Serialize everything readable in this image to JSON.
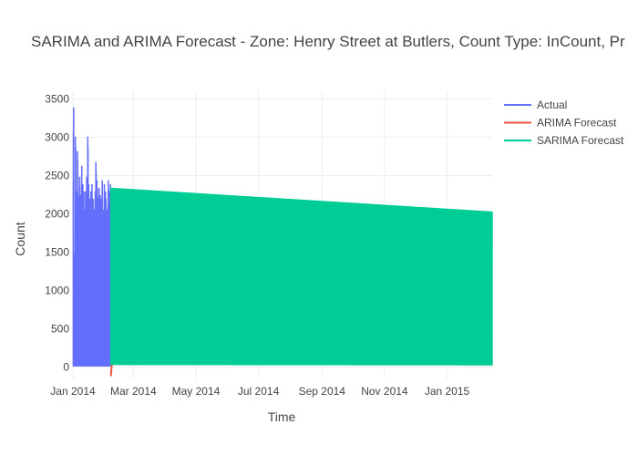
{
  "chart_data": {
    "type": "line",
    "title": "SARIMA and ARIMA Forecast - Zone: Henry Street at Butlers, Count Type: InCount, Pr",
    "xlabel": "Time",
    "ylabel": "Count",
    "x_ticks": [
      "Jan 2014",
      "Mar 2014",
      "May 2014",
      "Jul 2014",
      "Sep 2014",
      "Nov 2014",
      "Jan 2015"
    ],
    "y_ticks": [
      "0",
      "500",
      "1000",
      "1500",
      "2000",
      "2500",
      "3000",
      "3500"
    ],
    "xlim": [
      "2014-01-01",
      "2015-02-14"
    ],
    "ylim": [
      -150,
      3600
    ],
    "grid": true,
    "legend_position": "top-right",
    "series": [
      {
        "name": "Actual",
        "color": "#636efa",
        "style": "hourly oscillation between low and daily peak",
        "x_range": [
          "2014-01-01",
          "2014-02-07"
        ],
        "daily_peaks": [
          3550,
          1550,
          3150,
          2400,
          2950,
          2350,
          2600,
          2350,
          2750,
          2500,
          2400,
          2150,
          2400,
          2600,
          3150,
          2500,
          2300,
          2400,
          2500,
          2300,
          2150,
          2400,
          2800,
          2550,
          2300,
          2450,
          2350,
          2300,
          2550,
          2150,
          2500,
          2400,
          2300,
          2150,
          2550,
          2400,
          2500,
          2350
        ],
        "daily_low": 15
      },
      {
        "name": "ARIMA Forecast",
        "color": "#ef553b",
        "x": [
          "2014-02-07",
          "2014-02-08"
        ],
        "y": [
          -120,
          30
        ]
      },
      {
        "name": "SARIMA Forecast",
        "color": "#00cc96",
        "style": "hourly oscillation between low and declining peak",
        "x_range": [
          "2014-02-07",
          "2015-02-14"
        ],
        "peak_start": 2340,
        "peak_end": 2030,
        "low_start": 25,
        "low_end": 20
      }
    ]
  }
}
